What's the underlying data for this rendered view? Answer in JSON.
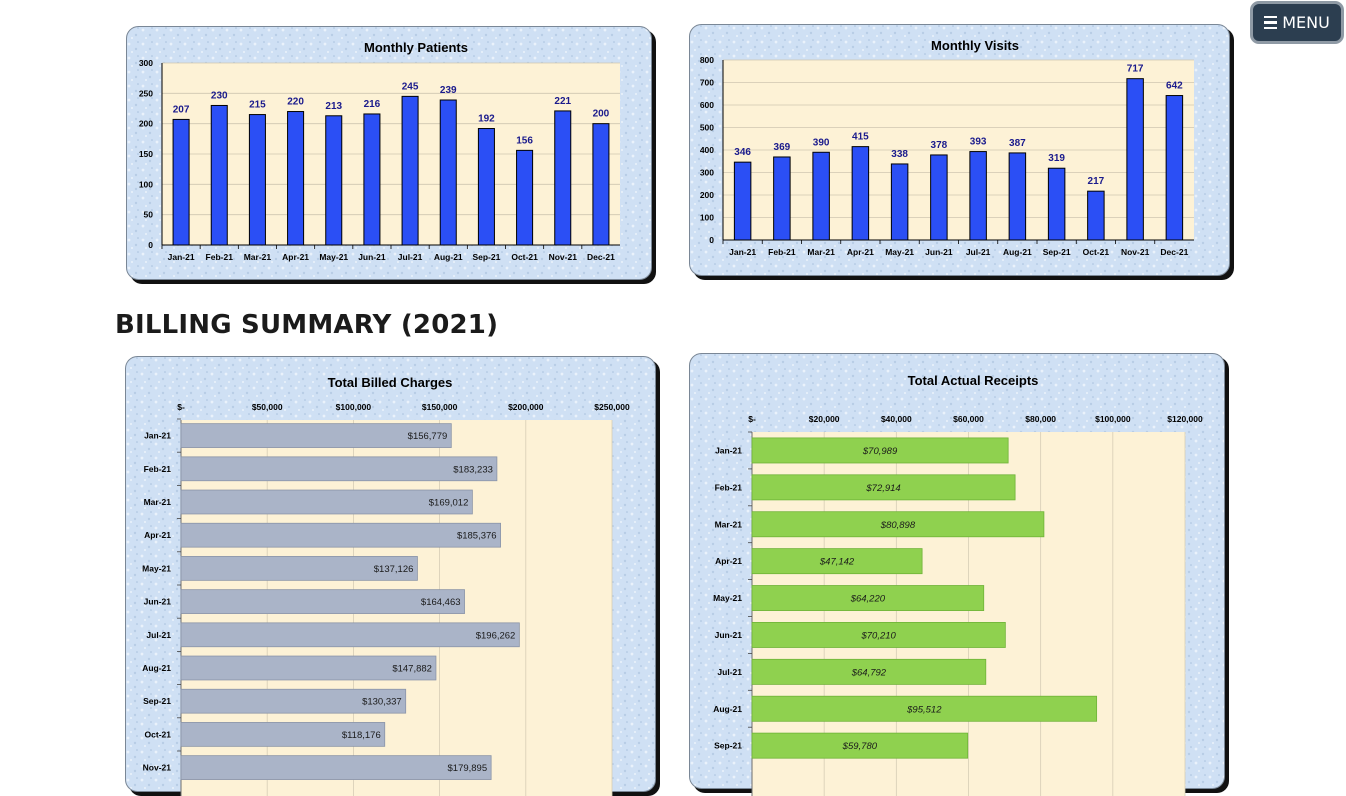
{
  "menu": {
    "label": "MENU",
    "icon": "hamburger-icon"
  },
  "billing": {
    "title": "BILLING SUMMARY (2021)"
  },
  "colors": {
    "blue_bar": "#2b4ff5",
    "gray_bar": "#aab4c8",
    "green_bar": "#8fd14f",
    "plot_bg": "#fdf2d6",
    "frame_bg": "#cfe0f4"
  },
  "chart_data": [
    {
      "type": "bar",
      "title": "Monthly Patients",
      "categories": [
        "Jan-21",
        "Feb-21",
        "Mar-21",
        "Apr-21",
        "May-21",
        "Jun-21",
        "Jul-21",
        "Aug-21",
        "Sep-21",
        "Oct-21",
        "Nov-21",
        "Dec-21"
      ],
      "values": [
        207,
        230,
        215,
        220,
        213,
        216,
        245,
        239,
        192,
        156,
        221,
        200
      ],
      "value_labels": [
        "207",
        "230",
        "215",
        "220",
        "213",
        "216",
        "245",
        "239",
        "192",
        "156",
        "221",
        "200"
      ],
      "yticks": [
        "0",
        "50",
        "100",
        "150",
        "200",
        "250",
        "300"
      ],
      "ylim": [
        0,
        300
      ],
      "orientation": "vertical",
      "grid": true
    },
    {
      "type": "bar",
      "title": "Monthly Visits",
      "categories": [
        "Jan-21",
        "Feb-21",
        "Mar-21",
        "Apr-21",
        "May-21",
        "Jun-21",
        "Jul-21",
        "Aug-21",
        "Sep-21",
        "Oct-21",
        "Nov-21",
        "Dec-21"
      ],
      "values": [
        346,
        369,
        390,
        415,
        338,
        378,
        393,
        387,
        319,
        217,
        717,
        642
      ],
      "value_labels": [
        "346",
        "369",
        "390",
        "415",
        "338",
        "378",
        "393",
        "387",
        "319",
        "217",
        "717",
        "642"
      ],
      "yticks": [
        "0",
        "100",
        "200",
        "300",
        "400",
        "500",
        "600",
        "700",
        "800"
      ],
      "ylim": [
        0,
        800
      ],
      "orientation": "vertical",
      "grid": true
    },
    {
      "type": "bar",
      "title": "Total Billed Charges",
      "categories": [
        "Jan-21",
        "Feb-21",
        "Mar-21",
        "Apr-21",
        "May-21",
        "Jun-21",
        "Jul-21",
        "Aug-21",
        "Sep-21",
        "Oct-21",
        "Nov-21"
      ],
      "values": [
        156779,
        183233,
        169012,
        185376,
        137126,
        164463,
        196262,
        147882,
        130337,
        118176,
        179895
      ],
      "value_labels": [
        "$156,779",
        "$183,233",
        "$169,012",
        "$185,376",
        "$137,126",
        "$164,463",
        "$196,262",
        "$147,882",
        "$130,337",
        "$118,176",
        "$179,895"
      ],
      "xticks": [
        "$-",
        "$50,000",
        "$100,000",
        "$150,000",
        "$200,000",
        "$250,000"
      ],
      "xlim": [
        0,
        250000
      ],
      "orientation": "horizontal",
      "grid": true
    },
    {
      "type": "bar",
      "title": "Total Actual Receipts",
      "categories": [
        "Jan-21",
        "Feb-21",
        "Mar-21",
        "Apr-21",
        "May-21",
        "Jun-21",
        "Jul-21",
        "Aug-21",
        "Sep-21"
      ],
      "values": [
        70989,
        72914,
        80898,
        47142,
        64220,
        70210,
        64792,
        95512,
        59780
      ],
      "value_labels": [
        "$70,989",
        "$72,914",
        "$80,898",
        "$47,142",
        "$64,220",
        "$70,210",
        "$64,792",
        "$95,512",
        "$59,780"
      ],
      "xticks": [
        "$-",
        "$20,000",
        "$40,000",
        "$60,000",
        "$80,000",
        "$100,000",
        "$120,000"
      ],
      "xlim": [
        0,
        120000
      ],
      "orientation": "horizontal",
      "grid": true
    }
  ]
}
